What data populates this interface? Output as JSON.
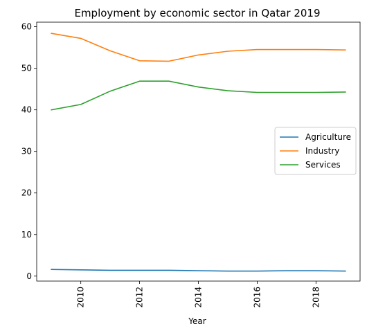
{
  "chart_data": {
    "type": "line",
    "title": "Employment by economic sector in Qatar 2019",
    "xlabel": "Year",
    "ylabel": "",
    "xlim": [
      2008.5,
      2019.5
    ],
    "ylim": [
      -1.2,
      61.1
    ],
    "x_ticks": [
      2010,
      2012,
      2014,
      2016,
      2018
    ],
    "y_ticks": [
      0,
      10,
      20,
      30,
      40,
      50,
      60
    ],
    "x": [
      2009,
      2010,
      2011,
      2012,
      2013,
      2014,
      2015,
      2016,
      2017,
      2018,
      2019
    ],
    "series": [
      {
        "name": "Agriculture",
        "color": "#1f77b4",
        "values": [
          1.6,
          1.5,
          1.4,
          1.4,
          1.4,
          1.3,
          1.2,
          1.2,
          1.3,
          1.3,
          1.2
        ]
      },
      {
        "name": "Industry",
        "color": "#ff7f0e",
        "values": [
          58.4,
          57.2,
          54.2,
          51.8,
          51.7,
          53.2,
          54.1,
          54.5,
          54.5,
          54.5,
          54.4
        ]
      },
      {
        "name": "Services",
        "color": "#2ca02c",
        "values": [
          40.0,
          41.3,
          44.5,
          46.9,
          46.9,
          45.5,
          44.6,
          44.2,
          44.2,
          44.2,
          44.3
        ]
      }
    ],
    "grid": false,
    "legend_position": "center-right"
  }
}
